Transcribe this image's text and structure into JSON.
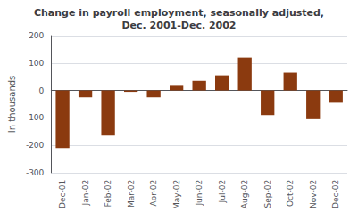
{
  "chart_data": {
    "type": "bar",
    "title": "Change in payroll employment, seasonally adjusted,\nDec. 2001-Dec. 2002",
    "ylabel": "In thousands",
    "categories": [
      "Dec-01",
      "Jan-02",
      "Feb-02",
      "Mar-02",
      "Apr-02",
      "May-02",
      "Jun-02",
      "Jul-02",
      "Aug-02",
      "Sep-02",
      "Oct-02",
      "Nov-02",
      "Dec-02"
    ],
    "values": [
      -210,
      -25,
      -165,
      -5,
      -25,
      20,
      35,
      55,
      120,
      -90,
      65,
      -105,
      -45
    ],
    "color": "#8B3A0F",
    "ylim": [
      -300,
      200
    ],
    "yticks": [
      -300,
      -200,
      -100,
      0,
      100,
      200
    ],
    "grid": true
  }
}
